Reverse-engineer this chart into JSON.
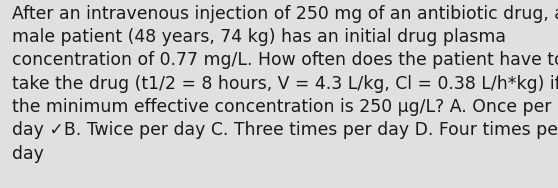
{
  "background_color": "#e0e0e0",
  "text_color": "#1a1a1a",
  "lines": [
    "After an intravenous injection of 250 mg of an antibiotic drug, a",
    "male patient (48 years, 74 kg) has an initial drug plasma",
    "concentration of 0.77 mg/L. How often does the patient have to",
    "take the drug (t1/2 = 8 hours, V = 4.3 L/kg, Cl = 0.38 L/h*kg) if",
    "the minimum effective concentration is 250 μg/L? A. Once per",
    "day ✓B. Twice per day C. Three times per day D. Four times per",
    "day"
  ],
  "font_size": 12.4,
  "fig_width": 5.58,
  "fig_height": 1.88,
  "dpi": 100
}
